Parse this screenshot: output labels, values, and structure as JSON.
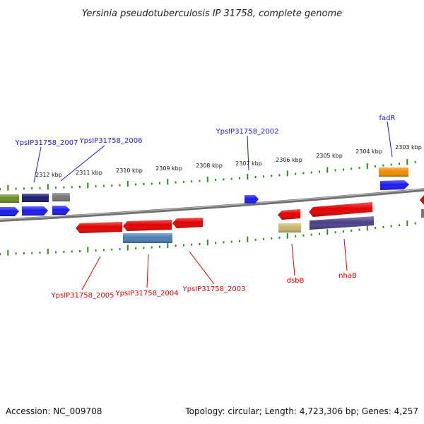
{
  "title": "Yersinia pseudotuberculosis IP 31758, complete genome",
  "footer": {
    "accession": "Accession: NC_009708",
    "topology": "Topology: circular; Length: 4,723,306 bp; Genes: 4,257"
  },
  "colors": {
    "background": "#ffffff",
    "backbone": "#7a7a7a",
    "tick": "#2e8b1e",
    "label_top": "#1a1acc",
    "label_bottom": "#dd0000",
    "forward_blue": "#1a1aee",
    "navy": "#1a1a6e",
    "olive": "#6b8e23",
    "gray": "#777777",
    "orange": "#f08c00",
    "red": "#e40000",
    "tan": "#c8b46e",
    "steel": "#4a7fb5",
    "slate": "#4a3f8a"
  },
  "scale": {
    "top_kbp_labels": [
      "2312 kbp",
      "2311 kbp",
      "2310 kbp",
      "2309 kbp",
      "2308 kbp",
      "2307 kbp",
      "2306 kbp",
      "2305 kbp",
      "2304 kbp",
      "2303 kbp"
    ]
  },
  "gene_labels": {
    "top": [
      "YpsIP31758_2007",
      "YpsIP31758_2006",
      "YpsIP31758_2002",
      "fadR"
    ],
    "bottom": [
      "YpsIP31758_2005",
      "YpsIP31758_2004",
      "YpsIP31758_2003",
      "dsbB",
      "nhaB"
    ]
  },
  "genes": [
    {
      "color": "olive",
      "strand": "forward",
      "icon": "gene-block"
    },
    {
      "color": "navy",
      "strand": "forward",
      "icon": "gene-block"
    },
    {
      "color": "gray",
      "strand": "forward",
      "icon": "gene-block"
    },
    {
      "color": "forward_blue",
      "strand": "forward",
      "icon": "gene-arrow"
    },
    {
      "color": "orange",
      "strand": "forward",
      "icon": "gene-block",
      "name": "fadR"
    },
    {
      "color": "red",
      "strand": "reverse",
      "icon": "gene-arrow",
      "name": "YpsIP31758_2005"
    },
    {
      "color": "red",
      "strand": "reverse",
      "icon": "gene-arrow",
      "name": "YpsIP31758_2004"
    },
    {
      "color": "red",
      "strand": "reverse",
      "icon": "gene-arrow",
      "name": "YpsIP31758_2003"
    },
    {
      "color": "steel",
      "strand": "reverse",
      "icon": "gene-block"
    },
    {
      "color": "red",
      "strand": "reverse",
      "icon": "gene-arrow",
      "name": "dsbB"
    },
    {
      "color": "tan",
      "strand": "reverse",
      "icon": "gene-block"
    },
    {
      "color": "red",
      "strand": "reverse",
      "icon": "gene-arrow",
      "name": "nhaB"
    },
    {
      "color": "slate",
      "strand": "reverse",
      "icon": "gene-block"
    }
  ]
}
